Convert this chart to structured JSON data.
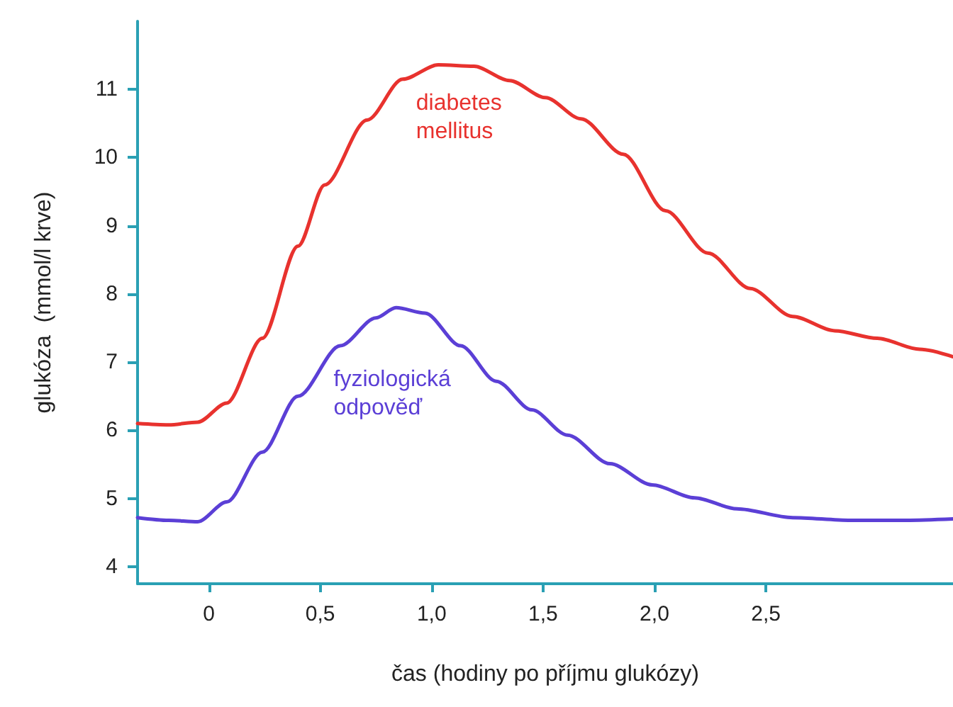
{
  "chart_data": {
    "type": "line",
    "xlabel": "čas (hodiny po příjmu glukózy)",
    "ylabel": "glukóza  (mmol/l krve)",
    "xlim": [
      -0.32,
      3.34
    ],
    "ylim": [
      3.75,
      12
    ],
    "xticks": [
      0,
      {
        "value": 0.5,
        "label": "0,5"
      },
      {
        "value": 1,
        "label": "1,0"
      },
      {
        "value": 1.5,
        "label": "1,5"
      },
      {
        "value": 2,
        "label": "2,0"
      },
      {
        "value": 2.5,
        "label": "2,5"
      }
    ],
    "yticks": [
      4,
      5,
      6,
      7,
      8,
      9,
      10,
      11
    ],
    "grid": false,
    "legend": false,
    "marker": "none",
    "line_style": "solid",
    "series": [
      {
        "name": "diabetes mellitus",
        "color": "#e8322e",
        "x": [
          -0.32,
          -0.18,
          -0.05,
          0.08,
          0.24,
          0.4,
          0.52,
          0.71,
          0.87,
          1.03,
          1.19,
          1.35,
          1.51,
          1.67,
          1.86,
          2.05,
          2.24,
          2.43,
          2.62,
          2.81,
          3.0,
          3.19,
          3.34
        ],
        "values": [
          6.1,
          6.08,
          6.12,
          6.4,
          7.35,
          8.7,
          9.6,
          10.55,
          11.15,
          11.36,
          11.34,
          11.13,
          10.88,
          10.57,
          10.05,
          9.22,
          8.6,
          8.08,
          7.67,
          7.46,
          7.35,
          7.19,
          7.08
        ]
      },
      {
        "name": "fyziologická odpověď",
        "color": "#5b3fd6",
        "x": [
          -0.32,
          -0.18,
          -0.05,
          0.08,
          0.24,
          0.4,
          0.59,
          0.75,
          0.84,
          0.97,
          1.13,
          1.29,
          1.45,
          1.61,
          1.8,
          1.99,
          2.18,
          2.37,
          2.62,
          2.88,
          3.13,
          3.34
        ],
        "values": [
          4.72,
          4.68,
          4.66,
          4.95,
          5.68,
          6.5,
          7.24,
          7.65,
          7.8,
          7.72,
          7.24,
          6.72,
          6.3,
          5.93,
          5.51,
          5.2,
          5.01,
          4.85,
          4.72,
          4.68,
          4.68,
          4.7
        ]
      }
    ]
  }
}
